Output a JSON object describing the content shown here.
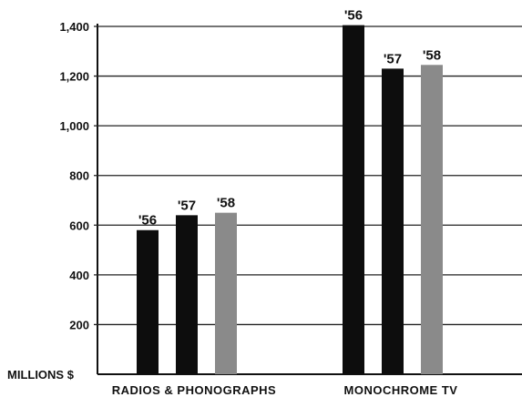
{
  "chart_data": {
    "type": "bar",
    "ylabel": "MILLIONS $",
    "ylim": [
      0,
      1400
    ],
    "yticks": [
      200,
      400,
      600,
      800,
      1000,
      1200,
      1400
    ],
    "ytick_labels": [
      "200",
      "400",
      "600",
      "800",
      "1,000",
      "1,200",
      "1,400"
    ],
    "grid": true,
    "categories": [
      "RADIOS & PHONOGRAPHS",
      "MONOCHROME TV"
    ],
    "series": [
      {
        "name": "'56",
        "color": "#0d0d0d",
        "values": [
          580,
          1405
        ]
      },
      {
        "name": "'57",
        "color": "#0d0d0d",
        "values": [
          640,
          1230
        ]
      },
      {
        "name": "'58",
        "color": "#8a8a8a",
        "values": [
          650,
          1245
        ]
      }
    ]
  }
}
